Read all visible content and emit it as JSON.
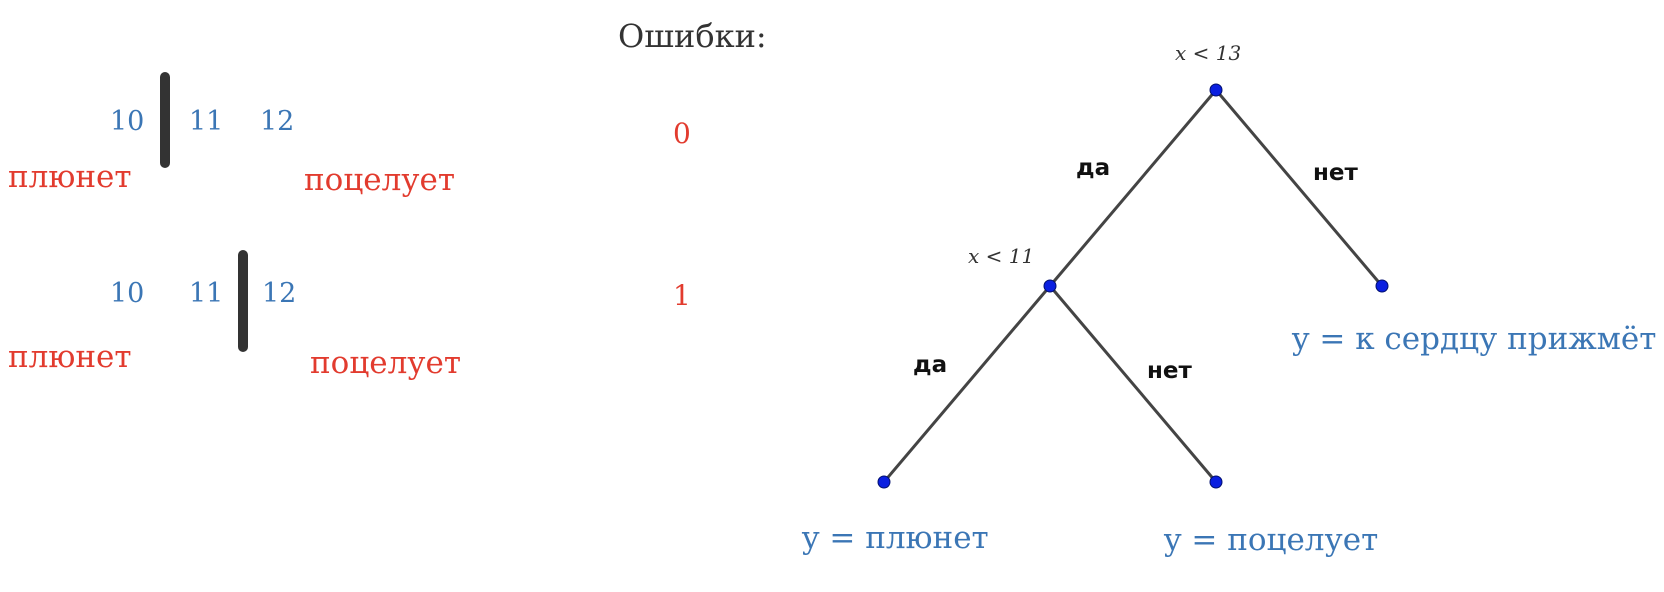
{
  "left_panel": {
    "split1": {
      "numbers": [
        "10",
        "11",
        "12"
      ],
      "left_label": "плюнет",
      "right_label": "поцелует"
    },
    "split2": {
      "numbers": [
        "10",
        "11",
        "12"
      ],
      "left_label": "плюнет",
      "right_label": "поцелует"
    }
  },
  "errors": {
    "title": "Ошибки:",
    "values": [
      "0",
      "1"
    ]
  },
  "tree": {
    "root_condition": "x < 13",
    "inner_condition": "x < 11",
    "edge_yes": "да",
    "edge_no": "нет",
    "leaf_right": "y = к сердцу прижмёт",
    "leaf_left": "y = плюнет",
    "leaf_middle": "y = поцелует",
    "edge_color": "#444444",
    "node_color": "#0a1fe0"
  }
}
